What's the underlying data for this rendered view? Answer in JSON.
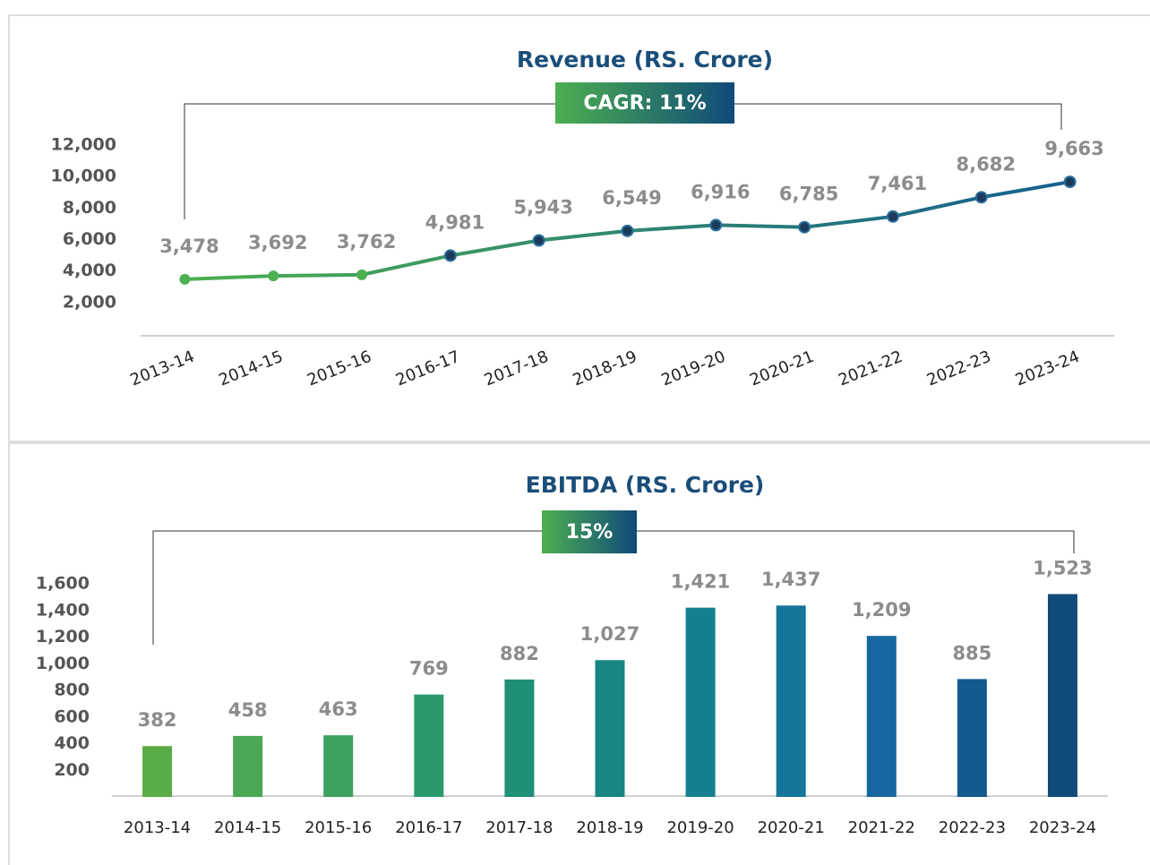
{
  "chart_data": [
    {
      "type": "line",
      "title": "Revenue (RS. Crore)",
      "annotation": "CAGR: 11%",
      "categories": [
        "2013-14",
        "2014-15",
        "2015-16",
        "2016-17",
        "2017-18",
        "2018-19",
        "2019-20",
        "2020-21",
        "2021-22",
        "2022-23",
        "2023-24"
      ],
      "values": [
        3478,
        3692,
        3762,
        4981,
        5943,
        6549,
        6916,
        6785,
        7461,
        8682,
        9663
      ],
      "value_labels": [
        "3,478",
        "3,692",
        "3,762",
        "4,981",
        "5,943",
        "6,549",
        "6,916",
        "6,785",
        "7,461",
        "8,682",
        "9,663"
      ],
      "color": [
        "#4caf50",
        "#155f8f"
      ],
      "marker_colors": [
        "#4caf50",
        "#4caf50",
        "#4caf50",
        "#1b3a5c",
        "#1b3a5c",
        "#1b3a5c",
        "#1b3a5c",
        "#1b3a5c",
        "#1b3a5c",
        "#1b3a5c",
        "#1b3a5c"
      ],
      "ylim": [
        0,
        12000
      ],
      "yticks": [
        {
          "value": 2000,
          "label": "2,000"
        },
        {
          "value": 4000,
          "label": "4,000"
        },
        {
          "value": 6000,
          "label": "6,000"
        },
        {
          "value": 8000,
          "label": "8,000"
        },
        {
          "value": 10000,
          "label": "10,000"
        },
        {
          "value": 12000,
          "label": "12,000"
        }
      ]
    },
    {
      "type": "bar",
      "title": "EBITDA (RS. Crore)",
      "annotation": "15%",
      "categories": [
        "2013-14",
        "2014-15",
        "2015-16",
        "2016-17",
        "2017-18",
        "2018-19",
        "2019-20",
        "2020-21",
        "2021-22",
        "2022-23",
        "2023-24"
      ],
      "values": [
        382,
        458,
        463,
        769,
        882,
        1027,
        1421,
        1437,
        1209,
        885,
        1523
      ],
      "value_labels": [
        "382",
        "458",
        "463",
        "769",
        "882",
        "1,027",
        "1,421",
        "1,437",
        "1,209",
        "885",
        "1,523"
      ],
      "colors": [
        "#5aac47",
        "#4aa754",
        "#3ea15e",
        "#2a9a6c",
        "#1e9078",
        "#178683",
        "#14808f",
        "#16759b",
        "#1767a0",
        "#125a8f",
        "#0f4a7a"
      ],
      "ylim": [
        0,
        1600
      ],
      "yticks": [
        {
          "value": 200,
          "label": "200"
        },
        {
          "value": 400,
          "label": "400"
        },
        {
          "value": 600,
          "label": "600"
        },
        {
          "value": 800,
          "label": "800"
        },
        {
          "value": 1000,
          "label": "1,000"
        },
        {
          "value": 1200,
          "label": "1,200"
        },
        {
          "value": 1400,
          "label": "1,400"
        },
        {
          "value": 1600,
          "label": "1,600"
        }
      ]
    }
  ]
}
